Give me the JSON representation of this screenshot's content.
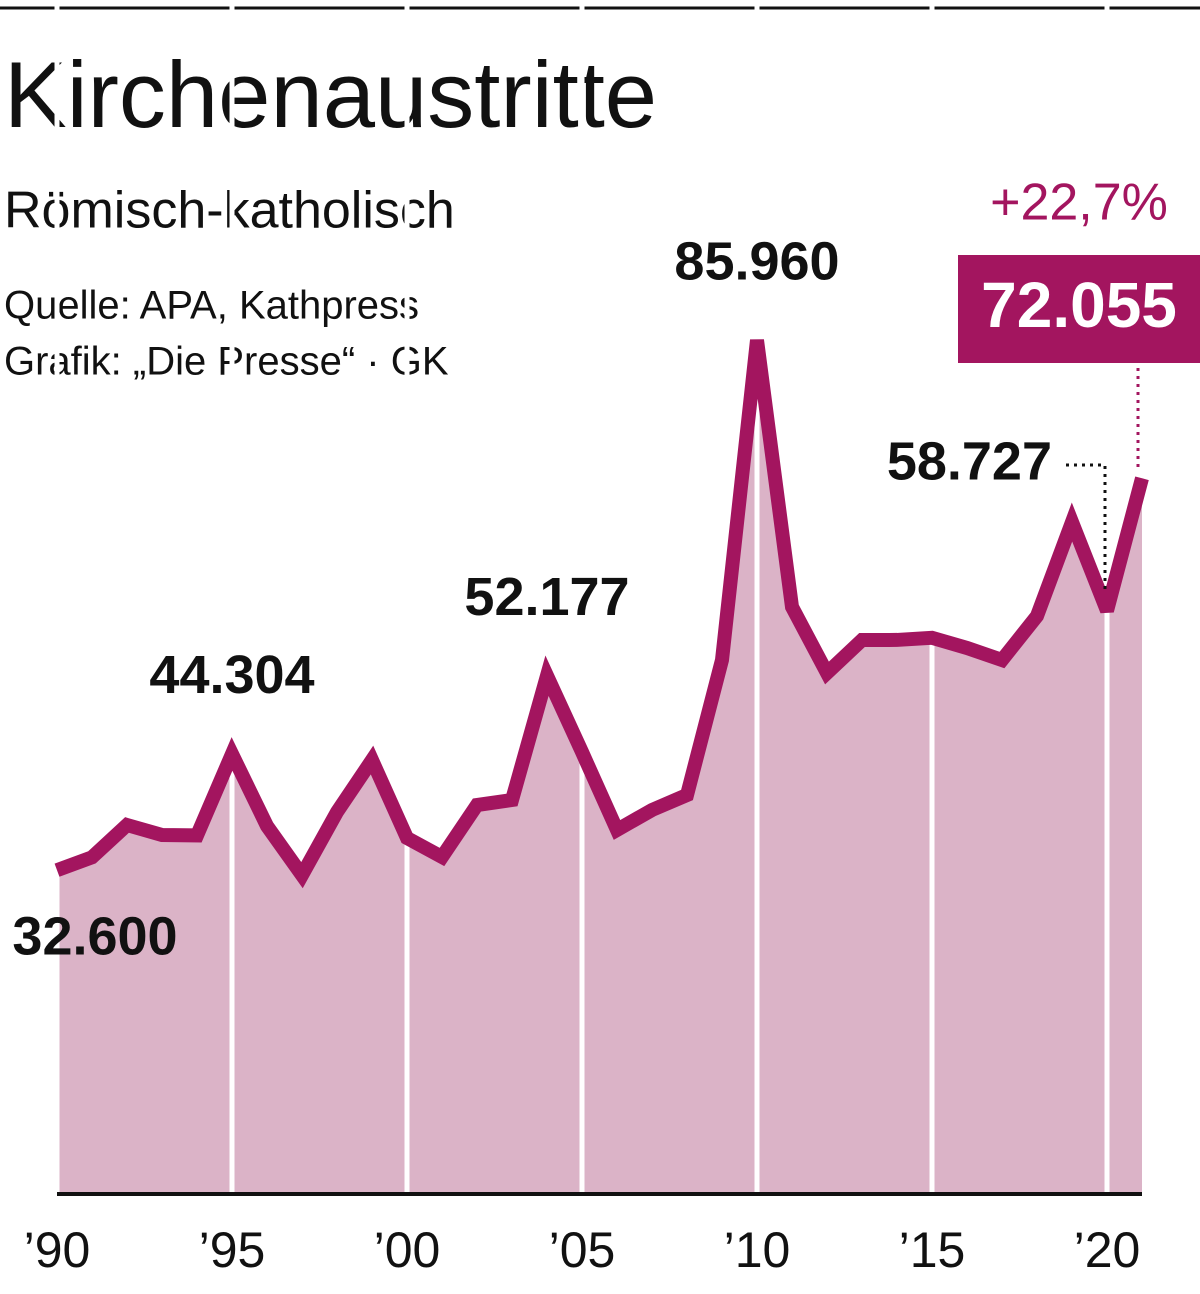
{
  "chart_data": {
    "type": "area",
    "title": "Kirchenaustritte",
    "subtitle": "Römisch-katholisch",
    "source": "Quelle: APA, Kathpress",
    "credit": "Grafik: „Die Presse“ · GK",
    "annotation": "+22,7%",
    "x": [
      1990,
      1991,
      1992,
      1993,
      1994,
      1995,
      1996,
      1997,
      1998,
      1999,
      2000,
      2001,
      2002,
      2003,
      2004,
      2005,
      2006,
      2007,
      2008,
      2009,
      2010,
      2011,
      2012,
      2013,
      2014,
      2015,
      2016,
      2017,
      2018,
      2019,
      2020,
      2021
    ],
    "values": [
      32600,
      33900,
      37150,
      36140,
      36100,
      44304,
      37050,
      32100,
      38460,
      43690,
      35840,
      33930,
      39160,
      39670,
      52177,
      44500,
      36650,
      38660,
      40170,
      53760,
      85960,
      59100,
      52450,
      55770,
      55780,
      56000,
      54970,
      53760,
      58190,
      67650,
      58727,
      72055
    ],
    "value_labels": [
      "32.600",
      null,
      null,
      null,
      null,
      "44.304",
      null,
      null,
      null,
      null,
      null,
      null,
      null,
      null,
      "52.177",
      null,
      null,
      null,
      null,
      null,
      "85.960",
      null,
      null,
      null,
      null,
      null,
      null,
      null,
      null,
      null,
      "58.727",
      "72.055"
    ],
    "color": "#a3155f",
    "fill_color": "#dbb3c7",
    "highlight_color": "#a3155f",
    "xlim": [
      1990,
      2021
    ],
    "ylim": [
      0,
      100000
    ],
    "xticks": [
      {
        "value": 1990,
        "label": "’90"
      },
      {
        "value": 1995,
        "label": "’95"
      },
      {
        "value": 2000,
        "label": "’00"
      },
      {
        "value": 2005,
        "label": "’05"
      },
      {
        "value": 2010,
        "label": "’10"
      },
      {
        "value": 2015,
        "label": "’15"
      },
      {
        "value": 2020,
        "label": "’20"
      }
    ],
    "grid": true
  }
}
